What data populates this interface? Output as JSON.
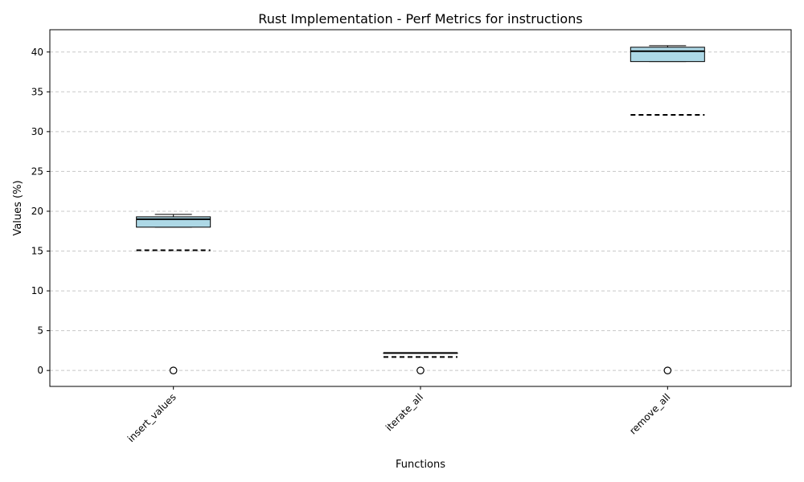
{
  "chart_data": {
    "type": "box",
    "title": "Rust Implementation - Perf Metrics for instructions",
    "xlabel": "Functions",
    "ylabel": "Values (%)",
    "categories": [
      "insert_values",
      "iterate_all",
      "remove_all"
    ],
    "ylim": [
      -2,
      42.8
    ],
    "yticks": [
      0,
      5,
      10,
      15,
      20,
      25,
      30,
      35,
      40
    ],
    "grid": true,
    "boxes": [
      {
        "name": "insert_values",
        "whisker_low": 18.0,
        "q1": 18.0,
        "median": 19.0,
        "q3": 19.3,
        "whisker_high": 19.6,
        "mean": 15.1,
        "outliers": [
          0
        ]
      },
      {
        "name": "iterate_all",
        "whisker_low": 2.2,
        "q1": 2.2,
        "median": 2.2,
        "q3": 2.2,
        "whisker_high": 2.2,
        "mean": 1.7,
        "outliers": [
          0
        ]
      },
      {
        "name": "remove_all",
        "whisker_low": 38.8,
        "q1": 38.8,
        "median": 40.1,
        "q3": 40.6,
        "whisker_high": 40.8,
        "mean": 32.1,
        "outliers": [
          0
        ]
      }
    ],
    "colors": {
      "box_fill": "#add8e6",
      "edge": "#000000",
      "grid": "#c8c8c8"
    }
  }
}
